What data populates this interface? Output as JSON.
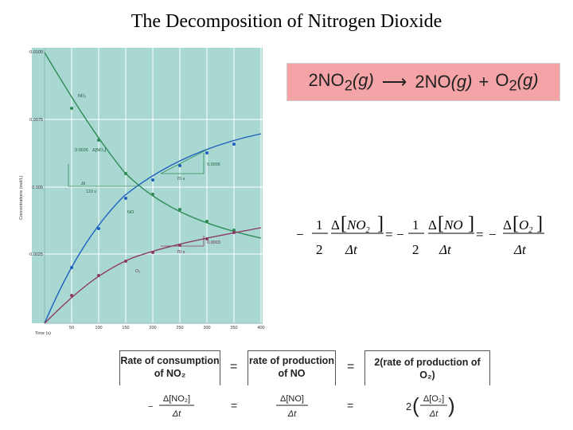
{
  "slide": {
    "title": "The Decomposition of Nitrogen Dioxide"
  },
  "graph": {
    "y_axis_label": "Concentrations (mol/L)",
    "x_axis_label": "Time (s)",
    "y_ticks": [
      "0.0100",
      "0.0075",
      "0.005",
      "0.0025"
    ],
    "x_ticks": [
      "50",
      "100",
      "150",
      "200",
      "250",
      "300",
      "350",
      "400"
    ],
    "labels": {
      "no2": "NO₂",
      "no": "NO",
      "o2": "O₂",
      "d_no2": "0.0026",
      "delta_no2": "Δ[NO₂]",
      "delta_t": "Δt",
      "t110": "110 s",
      "t70a": "70 s",
      "t70b": "70 s",
      "v0006": "0.0006",
      "v0003": "0.0003"
    },
    "colors": {
      "background": "#a9d8d2",
      "no2": "#2e8b57",
      "no": "#1f5fbf",
      "o2": "#8b3a62"
    }
  },
  "reaction": {
    "lhs": "2NO",
    "lhs_sub": "2",
    "lhs_state": "(g)",
    "rhs1": "2NO",
    "rhs1_state": "(g)",
    "plus": "+",
    "rhs2": "O",
    "rhs2_sub": "2",
    "rhs2_state": "(g)",
    "bg_color": "#f4a3a6"
  },
  "rate_equation": {
    "neg": "−",
    "one": "1",
    "two": "2",
    "delta": "Δ",
    "no2": "NO",
    "no2_sub": "2",
    "no": "NO",
    "o2": "O",
    "o2_sub": "2",
    "dt": "Δt",
    "eq": "="
  },
  "bottom": {
    "box1_line1": "Rate of consumption",
    "box1_line2": "of NO₂",
    "box2_line1": "rate of production",
    "box2_line2": "of NO",
    "box3": "2(rate of production of O₂)",
    "eq": "=",
    "frac1_num": "Δ[NO₂]",
    "frac1_den": "Δt",
    "frac2_num": "Δ[NO]",
    "frac2_den": "Δt",
    "frac3_coef": "2",
    "frac3_num": "Δ[O₂]",
    "frac3_den": "Δt",
    "minus": "−"
  }
}
